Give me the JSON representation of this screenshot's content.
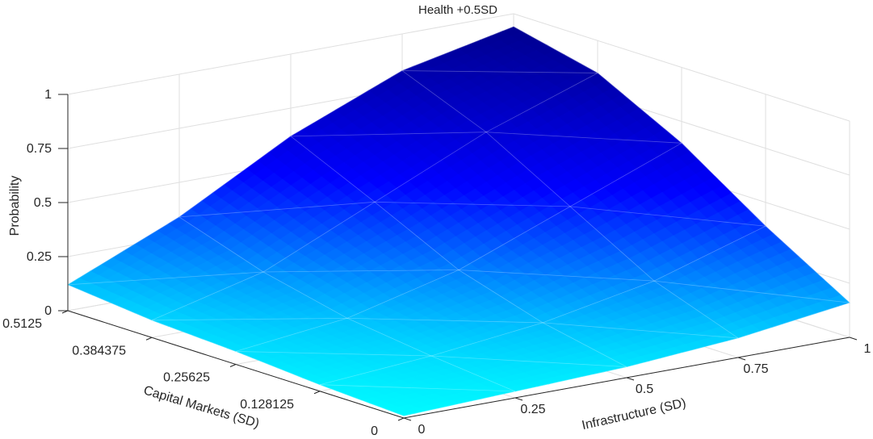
{
  "chart_data": {
    "type": "surface",
    "title": "Health +0.5SD",
    "xlabel": "Infrastructure (SD)",
    "ylabel": "Capital Markets (SD)",
    "zlabel": "Probability",
    "x": [
      0,
      0.25,
      0.5,
      0.75,
      1
    ],
    "y": [
      0,
      0.128125,
      0.25625,
      0.384375,
      0.5125
    ],
    "x_ticks": [
      "0",
      "0.25",
      "0.5",
      "0.75",
      "1"
    ],
    "y_ticks": [
      "0",
      "0.128125",
      "0.25625",
      "0.384375",
      "0.5125"
    ],
    "z_ticks": [
      "0",
      "0.25",
      "0.5",
      "0.75",
      "1"
    ],
    "zlim": [
      0,
      1
    ],
    "z": [
      [
        0.01,
        0.03,
        0.05,
        0.09,
        0.16
      ],
      [
        0.03,
        0.07,
        0.13,
        0.23,
        0.39
      ],
      [
        0.06,
        0.12,
        0.25,
        0.45,
        0.65
      ],
      [
        0.08,
        0.21,
        0.44,
        0.67,
        0.85
      ],
      [
        0.12,
        0.34,
        0.62,
        0.83,
        0.94
      ]
    ],
    "colormap": [
      "#00ffff",
      "#0000ff",
      "#000080"
    ],
    "grid": true
  }
}
